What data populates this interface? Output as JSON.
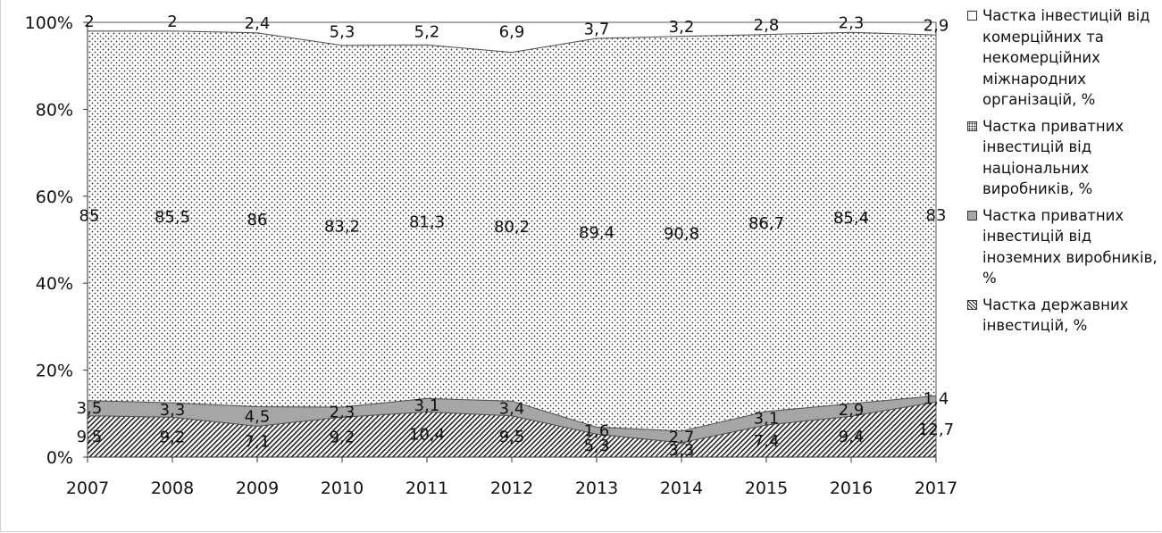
{
  "chart_data": {
    "type": "area",
    "stacked": "percent",
    "categories": [
      "2007",
      "2008",
      "2009",
      "2010",
      "2011",
      "2012",
      "2013",
      "2014",
      "2015",
      "2016",
      "2017"
    ],
    "series": [
      {
        "key": "state",
        "name": "Частка державних інвестицій, %",
        "values": [
          9.5,
          9.2,
          7.1,
          9.2,
          10.4,
          9.5,
          5.3,
          3.3,
          7.4,
          9.4,
          12.7
        ],
        "labels": [
          "9,5",
          "9,2",
          "7,1",
          "9,2",
          "10,4",
          "9,5",
          "5,3",
          "3,3",
          "7,4",
          "9,4",
          "12,7"
        ],
        "pattern": "diagonal-hatch"
      },
      {
        "key": "foreign",
        "name": "Частка приватних інвестицій від іноземних виробників, %",
        "values": [
          3.5,
          3.3,
          4.5,
          2.3,
          3.1,
          3.4,
          1.6,
          2.7,
          3.1,
          2.9,
          1.4
        ],
        "labels": [
          "3,5",
          "3,3",
          "4,5",
          "2,3",
          "3,1",
          "3,4",
          "1,6",
          "2,7",
          "3,1",
          "2,9",
          "1,4"
        ],
        "color": "#a6a6a6"
      },
      {
        "key": "domestic",
        "name": "Частка приватних інвестицій від національних виробників, %",
        "values": [
          85,
          85.5,
          86,
          83.2,
          81.3,
          80.2,
          89.4,
          90.8,
          86.7,
          85.4,
          83
        ],
        "labels": [
          "85",
          "85,5",
          "86",
          "83,2",
          "81,3",
          "80,2",
          "89,4",
          "90,8",
          "86,7",
          "85,4",
          "83"
        ],
        "pattern": "dots"
      },
      {
        "key": "intl",
        "name": "Частка інвестицій від комерційних та некомерційних міжнародних організацій, %",
        "values": [
          2,
          2,
          2.4,
          5.3,
          5.2,
          6.9,
          3.7,
          3.2,
          2.8,
          2.3,
          2.9
        ],
        "labels": [
          "2",
          "2",
          "2,4",
          "5,3",
          "5,2",
          "6,9",
          "3,7",
          "3,2",
          "2,8",
          "2,3",
          "2,9"
        ],
        "color": "#ffffff"
      }
    ],
    "legend_order": [
      "intl",
      "domestic",
      "foreign",
      "state"
    ],
    "y_ticks": [
      "0%",
      "20%",
      "40%",
      "60%",
      "80%",
      "100%"
    ],
    "ylim": [
      0,
      100
    ],
    "grid": false,
    "legend_position": "right"
  }
}
